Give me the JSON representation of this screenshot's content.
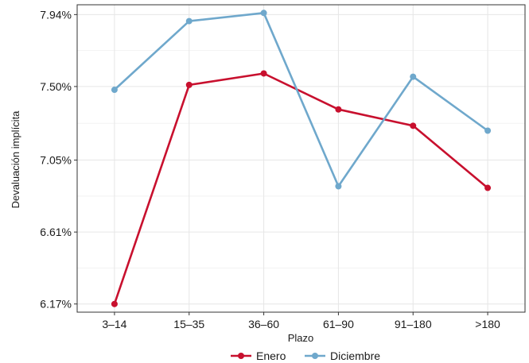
{
  "chart_data": {
    "type": "line",
    "title": "",
    "xlabel": "Plazo",
    "ylabel": "Devaluación implícita",
    "categories": [
      "3–14",
      "15–35",
      "36–60",
      "61–90",
      "91–180",
      ">180"
    ],
    "yticks": [
      "6.17%",
      "6.61%",
      "7.05%",
      "7.50%",
      "7.94%"
    ],
    "ytick_values": [
      6.17,
      6.61,
      7.05,
      7.5,
      7.94
    ],
    "ylim": [
      6.12,
      8.0
    ],
    "grid": true,
    "legend_position": "bottom",
    "series": [
      {
        "name": "Enero",
        "color": "#c8102e",
        "values": [
          6.17,
          7.51,
          7.58,
          7.36,
          7.26,
          6.88
        ]
      },
      {
        "name": "Diciembre",
        "color": "#6fa8cc",
        "values": [
          7.48,
          7.9,
          7.95,
          6.89,
          7.56,
          7.23
        ]
      }
    ]
  }
}
